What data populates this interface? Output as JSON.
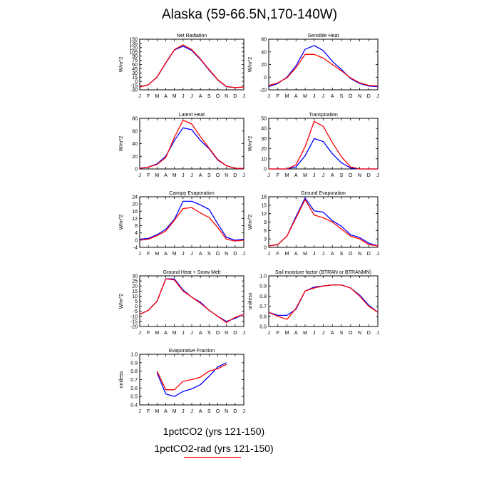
{
  "title": "Alaska (59-66.5N,170-140W)",
  "legend": {
    "line1": "1pctCO2 (yrs 121-150)",
    "line2": "1pctCO2-rad (yrs 121-150)"
  },
  "colors": {
    "series_1pctCO2": "#0000ff",
    "series_1pctCO2_rad": "#ff0000"
  },
  "chart_data": [
    {
      "type": "line",
      "title": "Net Radiation",
      "ylabel": "W/m^2",
      "categories": [
        "J",
        "F",
        "M",
        "A",
        "M",
        "J",
        "J",
        "A",
        "S",
        "O",
        "N",
        "D",
        "J"
      ],
      "ylim": [
        -30,
        150
      ],
      "yticks": [
        -30,
        -15,
        0,
        15,
        30,
        45,
        60,
        75,
        90,
        105,
        120,
        135,
        150
      ],
      "series": [
        {
          "values": [
            -20,
            -12,
            15,
            65,
            112,
            125,
            110,
            78,
            40,
            5,
            -19,
            -22,
            -20
          ]
        },
        {
          "values": [
            -20,
            -12,
            16,
            66,
            113,
            130,
            113,
            80,
            42,
            6,
            -18,
            -22,
            -20
          ]
        }
      ]
    },
    {
      "type": "line",
      "title": "Sensible Heat",
      "ylabel": "W/m^2",
      "categories": [
        "J",
        "F",
        "M",
        "A",
        "M",
        "J",
        "J",
        "A",
        "S",
        "O",
        "N",
        "D",
        "J"
      ],
      "ylim": [
        -20,
        60
      ],
      "yticks": [
        -20,
        0,
        20,
        40,
        60
      ],
      "series": [
        {
          "values": [
            -15,
            -10,
            0,
            18,
            44,
            50,
            42,
            25,
            12,
            -2,
            -10,
            -14,
            -15
          ]
        },
        {
          "values": [
            -13,
            -9,
            -1,
            15,
            36,
            36,
            30,
            20,
            10,
            -1,
            -9,
            -13,
            -14
          ]
        }
      ]
    },
    {
      "type": "line",
      "title": "Latent Heat",
      "ylabel": "W/m^2",
      "categories": [
        "J",
        "F",
        "M",
        "A",
        "M",
        "J",
        "J",
        "A",
        "S",
        "O",
        "N",
        "D",
        "J"
      ],
      "ylim": [
        0,
        80
      ],
      "yticks": [
        0,
        20,
        40,
        60,
        80
      ],
      "series": [
        {
          "values": [
            1,
            3,
            8,
            20,
            45,
            65,
            62,
            45,
            32,
            14,
            5,
            1,
            1
          ]
        },
        {
          "values": [
            1,
            3,
            7,
            18,
            50,
            77,
            71,
            51,
            33,
            15,
            5,
            1,
            1
          ]
        }
      ]
    },
    {
      "type": "line",
      "title": "Transpiration",
      "ylabel": "W/m^2",
      "categories": [
        "J",
        "F",
        "M",
        "A",
        "M",
        "J",
        "J",
        "A",
        "S",
        "O",
        "N",
        "D",
        "J"
      ],
      "ylim": [
        0,
        50
      ],
      "yticks": [
        0,
        10,
        20,
        30,
        40,
        50
      ],
      "series": [
        {
          "values": [
            0,
            0,
            0,
            2,
            13,
            30,
            27,
            15,
            6,
            1,
            0,
            0,
            0
          ]
        },
        {
          "values": [
            0,
            0,
            0,
            4,
            22,
            47,
            42,
            26,
            12,
            2,
            0,
            0,
            0
          ]
        }
      ]
    },
    {
      "type": "line",
      "title": "Canopy Evaporation",
      "ylabel": "W/m^2",
      "categories": [
        "J",
        "F",
        "M",
        "A",
        "M",
        "J",
        "J",
        "A",
        "S",
        "O",
        "N",
        "D",
        "J"
      ],
      "ylim": [
        -4,
        24
      ],
      "yticks": [
        -4,
        0,
        4,
        8,
        12,
        16,
        20,
        24
      ],
      "series": [
        {
          "values": [
            0.5,
            1,
            3,
            6,
            11.5,
            21.5,
            21.5,
            19.5,
            17,
            9,
            1.5,
            0,
            0.5
          ]
        },
        {
          "values": [
            0,
            0.5,
            2.5,
            5,
            11,
            17.5,
            18,
            15,
            12.5,
            7,
            0.5,
            -0.5,
            0
          ]
        }
      ]
    },
    {
      "type": "line",
      "title": "Ground Evaporation",
      "ylabel": "W/m^2",
      "categories": [
        "J",
        "F",
        "M",
        "A",
        "M",
        "J",
        "J",
        "A",
        "S",
        "O",
        "N",
        "D",
        "J"
      ],
      "ylim": [
        0,
        18
      ],
      "yticks": [
        0,
        3,
        6,
        9,
        12,
        15,
        18
      ],
      "series": [
        {
          "values": [
            0.5,
            1,
            4,
            11,
            17.5,
            13,
            12.5,
            9.5,
            7.5,
            4.5,
            3.5,
            1.5,
            0.5
          ]
        },
        {
          "values": [
            0.5,
            1,
            4,
            10.5,
            17,
            11.5,
            10.5,
            9,
            6.5,
            4,
            3,
            1,
            0.5
          ]
        }
      ]
    },
    {
      "type": "line",
      "title": "Ground Heat + Snow Melt",
      "ylabel": "W/m^2",
      "categories": [
        "J",
        "F",
        "M",
        "A",
        "M",
        "J",
        "J",
        "A",
        "S",
        "O",
        "N",
        "D",
        "J"
      ],
      "ylim": [
        -20,
        30
      ],
      "yticks": [
        -20,
        -15,
        -10,
        -5,
        0,
        5,
        10,
        15,
        20,
        25,
        30
      ],
      "series": [
        {
          "values": [
            -8,
            -4,
            5,
            27,
            27,
            16,
            9,
            4,
            -4,
            -10,
            -15,
            -12,
            -8
          ]
        },
        {
          "values": [
            -8,
            -4,
            5,
            27,
            26,
            15,
            9,
            3,
            -4,
            -10,
            -16,
            -11,
            -8
          ]
        }
      ]
    },
    {
      "type": "line",
      "title": "Soil moisture factor (BTRAN or BTRANMN)",
      "ylabel": "unitless",
      "categories": [
        "J",
        "F",
        "M",
        "A",
        "M",
        "J",
        "J",
        "A",
        "S",
        "O",
        "N",
        "D",
        "J"
      ],
      "ylim": [
        0.5,
        1.0
      ],
      "yticks": [
        0.5,
        0.6,
        0.7,
        0.8,
        0.9,
        1.0
      ],
      "series": [
        {
          "values": [
            0.64,
            0.61,
            0.61,
            0.67,
            0.85,
            0.89,
            0.9,
            0.91,
            0.91,
            0.88,
            0.81,
            0.71,
            0.64
          ]
        },
        {
          "values": [
            0.64,
            0.6,
            0.57,
            0.68,
            0.85,
            0.88,
            0.9,
            0.91,
            0.91,
            0.88,
            0.8,
            0.7,
            0.64
          ]
        }
      ]
    },
    {
      "type": "line",
      "title": "Evaporative Fraction",
      "ylabel": "unitless",
      "categories": [
        "J",
        "F",
        "M",
        "A",
        "M",
        "J",
        "J",
        "A",
        "S",
        "O",
        "N",
        "D",
        "J"
      ],
      "ylim": [
        0.4,
        1.0
      ],
      "yticks": [
        0.4,
        0.5,
        0.6,
        0.7,
        0.8,
        0.9,
        1.0
      ],
      "series": [
        {
          "values": [
            null,
            null,
            0.78,
            0.53,
            0.5,
            0.56,
            0.59,
            0.64,
            0.74,
            0.85,
            0.9,
            null,
            null
          ]
        },
        {
          "values": [
            null,
            null,
            0.8,
            0.58,
            0.58,
            0.68,
            0.7,
            0.73,
            0.8,
            0.83,
            0.88,
            null,
            null
          ]
        }
      ]
    }
  ]
}
